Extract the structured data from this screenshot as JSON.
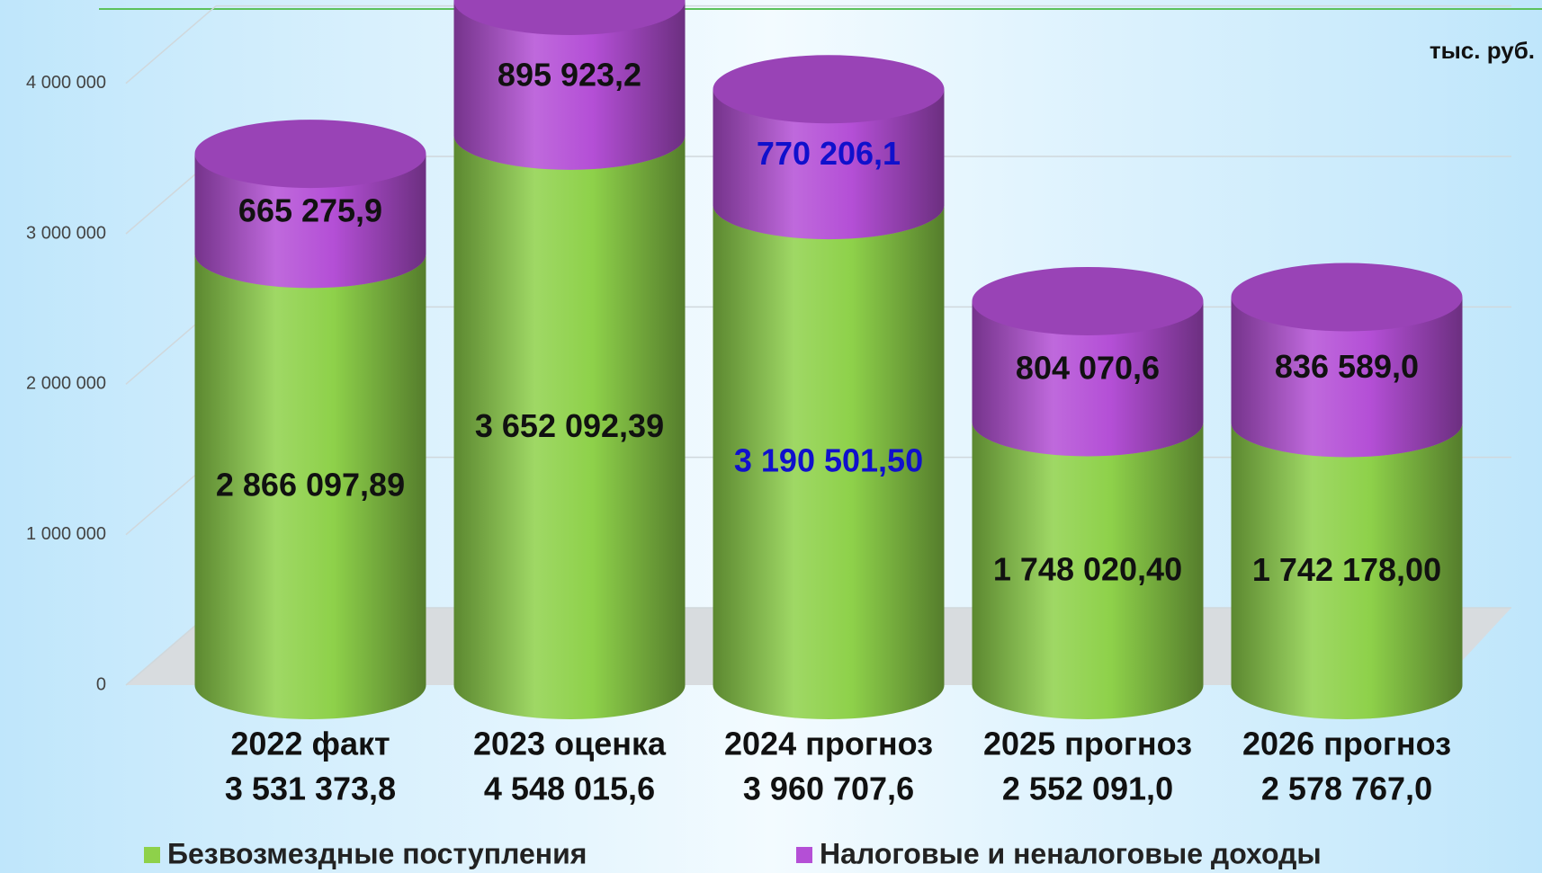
{
  "chart_data": {
    "type": "stacked_cylinder",
    "unit_label": "тыс. руб.",
    "categories": [
      "2022 факт",
      "2023 оценка",
      "2024 прогноз",
      "2025 прогноз",
      "2026 прогноз"
    ],
    "category_totals": [
      "3 531 373,8",
      "4 548 015,6",
      "3 960 707,6",
      "2 552 091,0",
      "2 578 767,0"
    ],
    "series": [
      {
        "name": "Безвозмездные поступления",
        "color": "#8ed14a",
        "values": [
          2866097.89,
          3652092.39,
          3190501.5,
          1748020.4,
          1742178.0
        ],
        "value_labels": [
          "2 866 097,89",
          "3 652 092,39",
          "3 190 501,50",
          "1 748 020,40",
          "1 742 178,00"
        ],
        "value_label_colors": [
          "#111111",
          "#111111",
          "#1010cc",
          "#111111",
          "#111111"
        ]
      },
      {
        "name": "Налоговые и неналоговые доходы",
        "color": "#b44fd6",
        "values": [
          665275.9,
          895923.2,
          770206.1,
          804070.6,
          836589.0
        ],
        "value_labels": [
          "665 275,9",
          "895 923,2",
          "770 206,1",
          "804 070,6",
          "836 589,0"
        ],
        "value_label_colors": [
          "#111111",
          "#111111",
          "#1010cc",
          "#111111",
          "#111111"
        ]
      }
    ],
    "ylim": [
      0,
      4500000
    ],
    "yticks": [
      0,
      {
        "value": 1000000,
        "label": "1 000 000"
      },
      {
        "value": 2000000,
        "label": "2 000 000"
      },
      {
        "value": 3000000,
        "label": "3 000 000"
      },
      {
        "value": 4000000,
        "label": "4 000 000"
      }
    ],
    "grid": true
  }
}
